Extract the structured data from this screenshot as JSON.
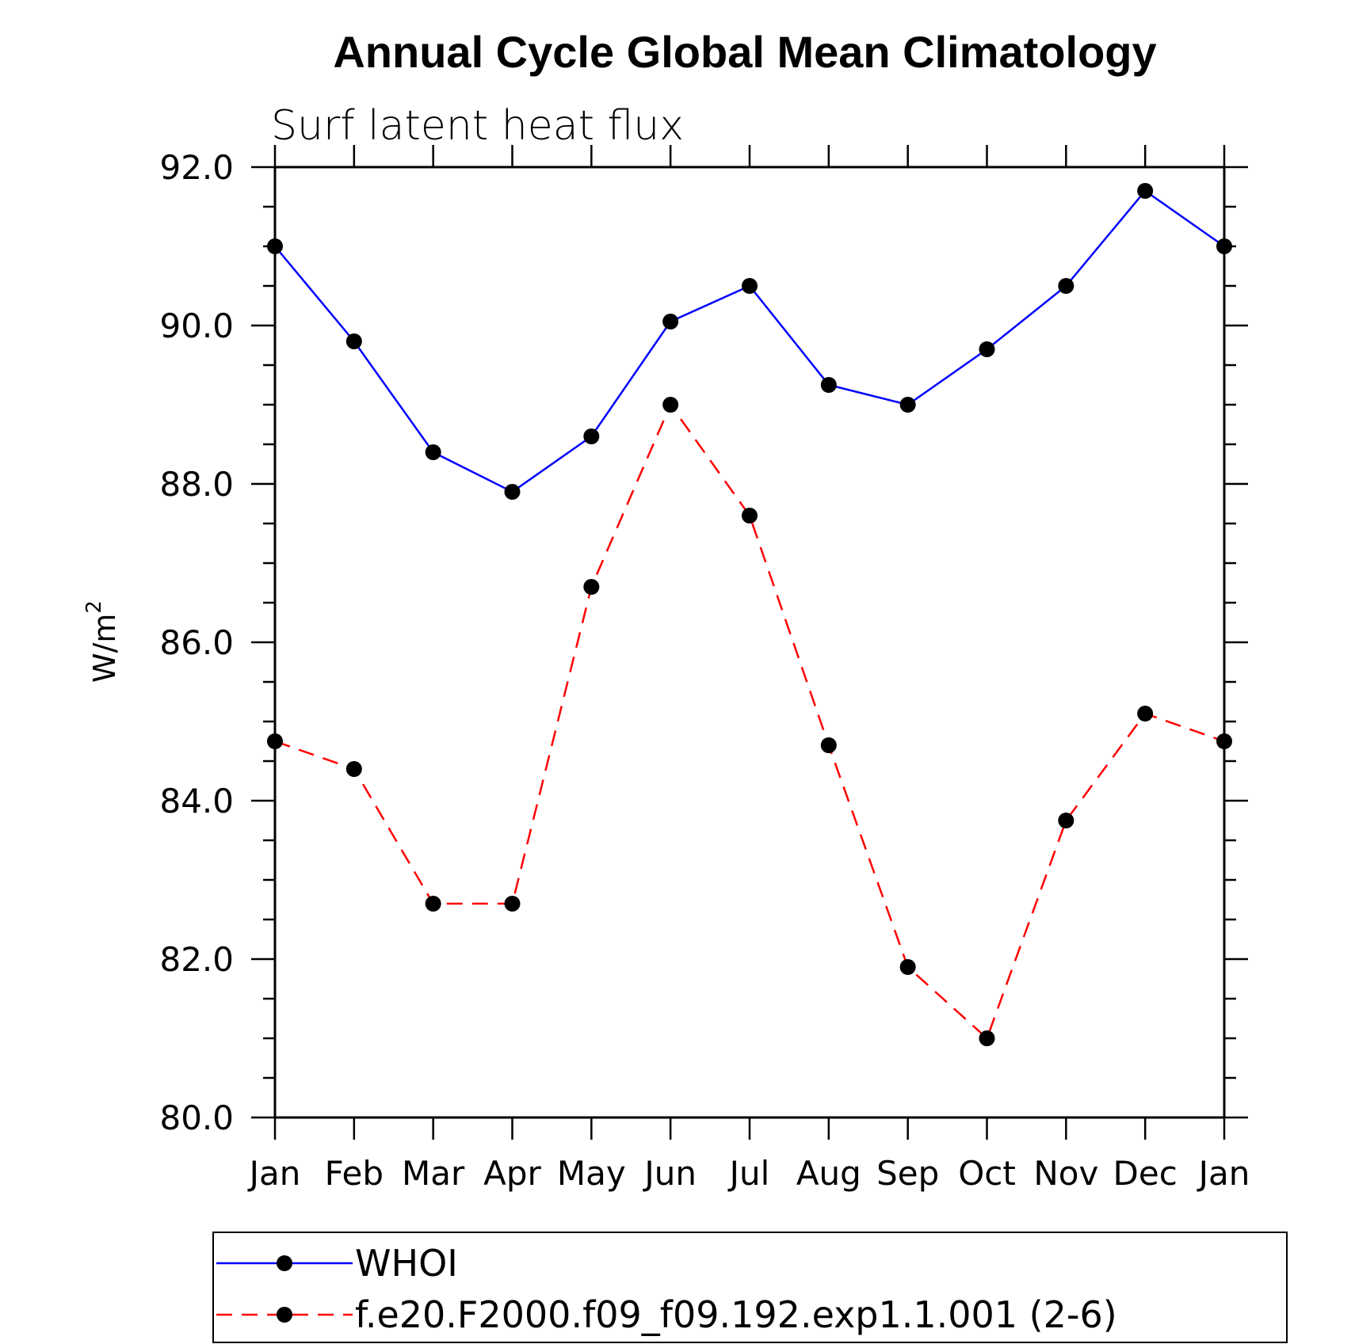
{
  "chart_data": {
    "type": "line",
    "title": "Annual Cycle Global Mean Climatology",
    "subtitle": "Surf latent heat flux",
    "ylabel": "W/m",
    "ylabel_superscript": "2",
    "xlabel": "",
    "categories": [
      "Jan",
      "Feb",
      "Mar",
      "Apr",
      "May",
      "Jun",
      "Jul",
      "Aug",
      "Sep",
      "Oct",
      "Nov",
      "Dec",
      "Jan"
    ],
    "ylim": [
      80.0,
      92.0
    ],
    "yticks": [
      "80.0",
      "82.0",
      "84.0",
      "86.0",
      "88.0",
      "90.0",
      "92.0"
    ],
    "grid": false,
    "legend_position": "bottom",
    "series": [
      {
        "name": "WHOI",
        "color": "#0000ff",
        "dash": "solid",
        "values": [
          91.0,
          89.8,
          88.4,
          87.9,
          88.6,
          90.05,
          90.5,
          89.25,
          89.0,
          89.7,
          90.5,
          91.7,
          91.0
        ]
      },
      {
        "name": "f.e20.F2000.f09_f09.192.exp1.1.001 (2-6)",
        "color": "#ff0000",
        "dash": "dashed",
        "values": [
          84.75,
          84.4,
          82.7,
          82.7,
          86.7,
          89.0,
          87.6,
          84.7,
          81.9,
          81.0,
          83.75,
          85.1,
          84.75
        ]
      }
    ]
  }
}
